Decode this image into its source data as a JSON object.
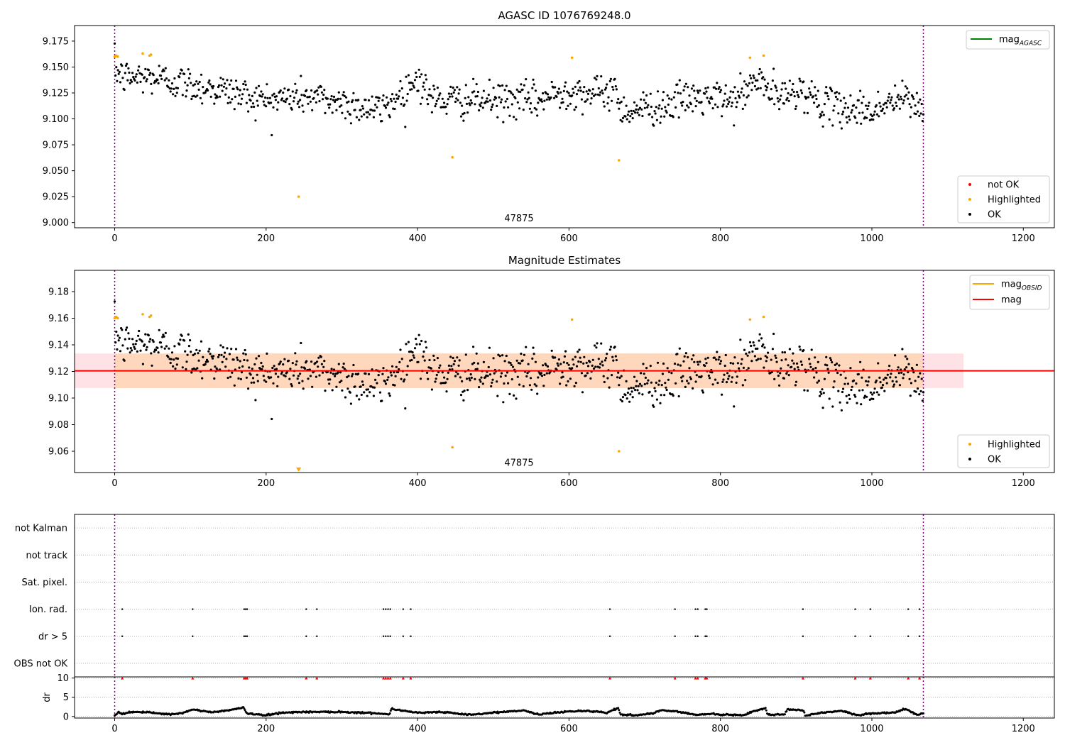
{
  "chart_data": [
    {
      "type": "scatter",
      "title": "AGASC ID 1076769248.0",
      "xlim": [
        -53,
        1241
      ],
      "ylim": [
        8.995,
        9.19
      ],
      "xticks": [
        0,
        200,
        400,
        600,
        800,
        1000,
        1200
      ],
      "yticks": [
        "9.000",
        "9.025",
        "9.050",
        "9.075",
        "9.100",
        "9.125",
        "9.150",
        "9.175"
      ],
      "vlines": [
        0,
        1068
      ],
      "annotation": {
        "text": "47875",
        "x": 534,
        "y": 9.001
      },
      "legend_upper": [
        {
          "label": "mag",
          "sub": "AGASC",
          "color": "#008000"
        }
      ],
      "legend_lower": [
        {
          "label": "not OK",
          "color": "#ff0000"
        },
        {
          "label": "Highlighted",
          "color": "#ffa500"
        },
        {
          "label": "OK",
          "color": "#000000"
        }
      ],
      "highlighted": [
        [
          0,
          9.16
        ],
        [
          2,
          9.161
        ],
        [
          4,
          9.16
        ],
        [
          37,
          9.163
        ],
        [
          46,
          9.161
        ],
        [
          48,
          9.162
        ],
        [
          243,
          9.025
        ],
        [
          446,
          9.063
        ],
        [
          604,
          9.159
        ],
        [
          666,
          9.06
        ],
        [
          839,
          9.159
        ],
        [
          857,
          9.161
        ]
      ],
      "series_ok": {
        "name": "OK",
        "x_range": [
          0,
          1068
        ],
        "n_points": 1000,
        "trend": [
          [
            0,
            9.149
          ],
          [
            10,
            9.14
          ],
          [
            50,
            9.14
          ],
          [
            100,
            9.133
          ],
          [
            140,
            9.128
          ],
          [
            200,
            9.118
          ],
          [
            250,
            9.122
          ],
          [
            300,
            9.116
          ],
          [
            350,
            9.108
          ],
          [
            380,
            9.125
          ],
          [
            400,
            9.14
          ],
          [
            420,
            9.118
          ],
          [
            500,
            9.118
          ],
          [
            560,
            9.118
          ],
          [
            600,
            9.128
          ],
          [
            640,
            9.123
          ],
          [
            660,
            9.13
          ],
          [
            670,
            9.108
          ],
          [
            720,
            9.112
          ],
          [
            760,
            9.12
          ],
          [
            820,
            9.118
          ],
          [
            850,
            9.138
          ],
          [
            880,
            9.118
          ],
          [
            900,
            9.13
          ],
          [
            940,
            9.112
          ],
          [
            1000,
            9.108
          ],
          [
            1040,
            9.12
          ],
          [
            1068,
            9.11
          ]
        ],
        "scatter_sd": 0.0085
      }
    },
    {
      "type": "scatter",
      "title": "Magnitude Estimates",
      "xlim": [
        -53,
        1241
      ],
      "ylim": [
        9.044,
        9.196
      ],
      "xticks": [
        0,
        200,
        400,
        600,
        800,
        1000,
        1200
      ],
      "yticks": [
        "9.06",
        "9.08",
        "9.10",
        "9.12",
        "9.14",
        "9.16",
        "9.18"
      ],
      "vlines": [
        0,
        1068
      ],
      "annotation": {
        "text": "47875",
        "x": 534,
        "y": 9.049
      },
      "legend_upper": [
        {
          "label": "mag",
          "sub": "OBSID",
          "color": "#ffa500"
        },
        {
          "label": "mag",
          "color": "#ff0000"
        }
      ],
      "legend_lower": [
        {
          "label": "Highlighted",
          "color": "#ffa500"
        },
        {
          "label": "OK",
          "color": "#000000"
        }
      ],
      "mag_line": {
        "value": 9.1205,
        "color": "#ff0000",
        "x_range": [
          -53,
          1241
        ]
      },
      "mag_band": {
        "low": 9.1075,
        "high": 9.1335,
        "x_range": [
          -53,
          1121
        ],
        "color": "#ffb6c1"
      },
      "obsid_band": {
        "low": 9.1075,
        "high": 9.1335,
        "x_range": [
          0,
          1068
        ],
        "color": "#ffa500"
      },
      "highlighted": [
        [
          0,
          9.16
        ],
        [
          2,
          9.161
        ],
        [
          4,
          9.16
        ],
        [
          37,
          9.163
        ],
        [
          46,
          9.161
        ],
        [
          48,
          9.162
        ],
        [
          446,
          9.063
        ],
        [
          604,
          9.159
        ],
        [
          666,
          9.06
        ],
        [
          839,
          9.159
        ],
        [
          857,
          9.161
        ]
      ],
      "off_scale_marker": {
        "x": 243,
        "y": 9.0465,
        "color": "#ffa500"
      },
      "series_ok": {
        "name": "OK",
        "x_range": [
          0,
          1068
        ],
        "n_points": 1000,
        "trend": [
          [
            0,
            9.149
          ],
          [
            10,
            9.14
          ],
          [
            50,
            9.14
          ],
          [
            100,
            9.133
          ],
          [
            140,
            9.128
          ],
          [
            200,
            9.118
          ],
          [
            250,
            9.122
          ],
          [
            300,
            9.116
          ],
          [
            350,
            9.108
          ],
          [
            380,
            9.125
          ],
          [
            400,
            9.14
          ],
          [
            420,
            9.118
          ],
          [
            500,
            9.118
          ],
          [
            560,
            9.118
          ],
          [
            600,
            9.128
          ],
          [
            640,
            9.123
          ],
          [
            660,
            9.13
          ],
          [
            670,
            9.108
          ],
          [
            720,
            9.112
          ],
          [
            760,
            9.12
          ],
          [
            820,
            9.118
          ],
          [
            850,
            9.138
          ],
          [
            880,
            9.118
          ],
          [
            900,
            9.13
          ],
          [
            940,
            9.112
          ],
          [
            1000,
            9.108
          ],
          [
            1040,
            9.12
          ],
          [
            1068,
            9.11
          ]
        ],
        "scatter_sd": 0.0085
      }
    },
    {
      "type": "scatter",
      "title": "",
      "xlim": [
        -53,
        1241
      ],
      "categories": [
        "OBS not OK",
        "dr > 5",
        "Ion. rad.",
        "Sat. pixel.",
        "not track",
        "not Kalman"
      ],
      "vlines": [
        0,
        1068
      ],
      "flagged_x": [
        10,
        103,
        171,
        173,
        175,
        253,
        267,
        355,
        358,
        361,
        364,
        381,
        391,
        654,
        740,
        767,
        770,
        780,
        782,
        909,
        978,
        998,
        1048,
        1063
      ]
    },
    {
      "type": "scatter",
      "title": "",
      "ylabel": "dr",
      "xlim": [
        -53,
        1241
      ],
      "ylim": [
        -0.4,
        10.3
      ],
      "xticks": [
        0,
        200,
        400,
        600,
        800,
        1000,
        1200
      ],
      "yticks": [
        "0",
        "5",
        "10"
      ],
      "vlines": [
        0,
        1068
      ],
      "red_markers_y": 10,
      "dr_trend": [
        [
          0,
          0.3
        ],
        [
          5,
          1.2
        ],
        [
          10,
          0.6
        ],
        [
          20,
          1.2
        ],
        [
          50,
          1.0
        ],
        [
          75,
          0.5
        ],
        [
          90,
          0.9
        ],
        [
          103,
          1.8
        ],
        [
          130,
          1.1
        ],
        [
          160,
          1.9
        ],
        [
          170,
          2.4
        ],
        [
          175,
          0.8
        ],
        [
          200,
          0.3
        ],
        [
          220,
          1.0
        ],
        [
          250,
          1.2
        ],
        [
          300,
          1.2
        ],
        [
          350,
          0.8
        ],
        [
          363,
          0.5
        ],
        [
          365,
          2.0
        ],
        [
          400,
          1.0
        ],
        [
          430,
          1.2
        ],
        [
          470,
          0.4
        ],
        [
          500,
          1.0
        ],
        [
          540,
          1.6
        ],
        [
          560,
          0.5
        ],
        [
          590,
          1.2
        ],
        [
          620,
          1.5
        ],
        [
          650,
          1.0
        ],
        [
          665,
          2.2
        ],
        [
          668,
          0.5
        ],
        [
          690,
          0.3
        ],
        [
          710,
          0.8
        ],
        [
          720,
          1.6
        ],
        [
          740,
          1.4
        ],
        [
          770,
          0.4
        ],
        [
          785,
          0.7
        ],
        [
          800,
          0.5
        ],
        [
          830,
          0.3
        ],
        [
          845,
          1.5
        ],
        [
          860,
          2.1
        ],
        [
          862,
          0.5
        ],
        [
          885,
          0.5
        ],
        [
          888,
          1.9
        ],
        [
          910,
          1.6
        ],
        [
          912,
          0.2
        ],
        [
          930,
          0.9
        ],
        [
          960,
          1.5
        ],
        [
          980,
          0.3
        ],
        [
          1000,
          0.8
        ],
        [
          1030,
          1.0
        ],
        [
          1045,
          2.0
        ],
        [
          1060,
          0.4
        ],
        [
          1068,
          0.8
        ]
      ]
    }
  ]
}
